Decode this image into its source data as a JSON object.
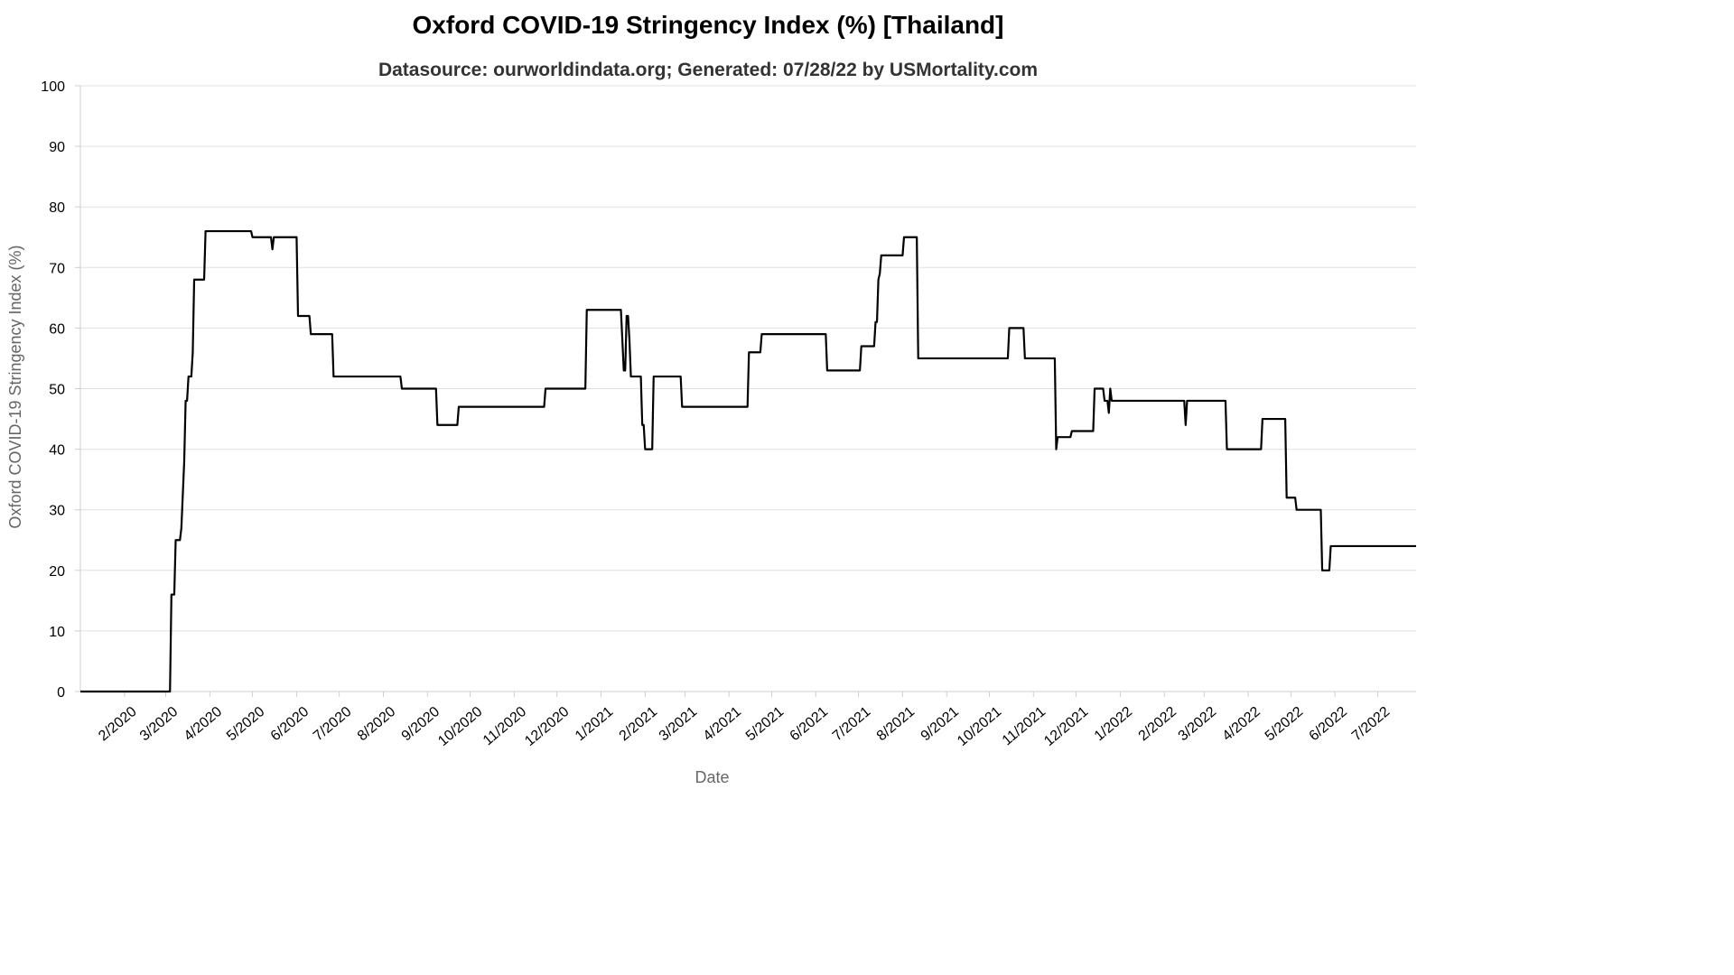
{
  "chart_data": {
    "type": "line",
    "title": "Oxford COVID-19 Stringency Index (%) [Thailand]",
    "subtitle": "Datasource: ourworldindata.org; Generated: 07/28/22 by USMortality.com",
    "xlabel": "Date",
    "ylabel": "Oxford COVID-19 Stringency Index (%)",
    "ylim": [
      0,
      100
    ],
    "yticks": [
      0,
      10,
      20,
      30,
      40,
      50,
      60,
      70,
      80,
      90,
      100
    ],
    "xlim": [
      "2020-01-01",
      "2022-07-28"
    ],
    "xtick_labels": [
      "2/2020",
      "3/2020",
      "4/2020",
      "5/2020",
      "6/2020",
      "7/2020",
      "8/2020",
      "9/2020",
      "10/2020",
      "11/2020",
      "12/2020",
      "1/2021",
      "2/2021",
      "3/2021",
      "4/2021",
      "5/2021",
      "6/2021",
      "7/2021",
      "8/2021",
      "9/2021",
      "10/2021",
      "11/2021",
      "12/2021",
      "1/2022",
      "2/2022",
      "3/2022",
      "4/2022",
      "5/2022",
      "6/2022",
      "7/2022"
    ],
    "grid": true,
    "line_color": "#000000",
    "series": [
      {
        "points": [
          [
            "2020-01-01",
            0
          ],
          [
            "2020-03-04",
            0
          ],
          [
            "2020-03-05",
            16
          ],
          [
            "2020-03-07",
            16
          ],
          [
            "2020-03-08",
            25
          ],
          [
            "2020-03-11",
            25
          ],
          [
            "2020-03-12",
            27
          ],
          [
            "2020-03-14",
            38
          ],
          [
            "2020-03-15",
            48
          ],
          [
            "2020-03-16",
            48
          ],
          [
            "2020-03-17",
            52
          ],
          [
            "2020-03-19",
            52
          ],
          [
            "2020-03-20",
            56
          ],
          [
            "2020-03-21",
            68
          ],
          [
            "2020-03-28",
            68
          ],
          [
            "2020-03-29",
            76
          ],
          [
            "2020-04-30",
            76
          ],
          [
            "2020-05-01",
            75
          ],
          [
            "2020-05-14",
            75
          ],
          [
            "2020-05-15",
            73
          ],
          [
            "2020-05-16",
            75
          ],
          [
            "2020-06-01",
            75
          ],
          [
            "2020-06-02",
            62
          ],
          [
            "2020-06-10",
            62
          ],
          [
            "2020-06-11",
            59
          ],
          [
            "2020-06-26",
            59
          ],
          [
            "2020-06-27",
            52
          ],
          [
            "2020-08-13",
            52
          ],
          [
            "2020-08-14",
            50
          ],
          [
            "2020-09-07",
            50
          ],
          [
            "2020-09-08",
            44
          ],
          [
            "2020-09-22",
            44
          ],
          [
            "2020-09-23",
            47
          ],
          [
            "2020-11-22",
            47
          ],
          [
            "2020-11-23",
            50
          ],
          [
            "2020-12-21",
            50
          ],
          [
            "2020-12-22",
            63
          ],
          [
            "2021-01-15",
            63
          ],
          [
            "2021-01-16",
            58
          ],
          [
            "2021-01-17",
            53
          ],
          [
            "2021-01-18",
            53
          ],
          [
            "2021-01-19",
            62
          ],
          [
            "2021-01-20",
            62
          ],
          [
            "2021-01-21",
            58
          ],
          [
            "2021-01-22",
            52
          ],
          [
            "2021-01-29",
            52
          ],
          [
            "2021-01-30",
            44
          ],
          [
            "2021-01-31",
            44
          ],
          [
            "2021-02-01",
            40
          ],
          [
            "2021-02-06",
            40
          ],
          [
            "2021-02-07",
            52
          ],
          [
            "2021-02-26",
            52
          ],
          [
            "2021-02-27",
            47
          ],
          [
            "2021-04-14",
            47
          ],
          [
            "2021-04-15",
            56
          ],
          [
            "2021-04-23",
            56
          ],
          [
            "2021-04-24",
            59
          ],
          [
            "2021-06-08",
            59
          ],
          [
            "2021-06-09",
            53
          ],
          [
            "2021-07-02",
            53
          ],
          [
            "2021-07-03",
            57
          ],
          [
            "2021-07-12",
            57
          ],
          [
            "2021-07-13",
            61
          ],
          [
            "2021-07-14",
            61
          ],
          [
            "2021-07-15",
            68
          ],
          [
            "2021-07-16",
            69
          ],
          [
            "2021-07-17",
            72
          ],
          [
            "2021-08-01",
            72
          ],
          [
            "2021-08-02",
            75
          ],
          [
            "2021-08-11",
            75
          ],
          [
            "2021-08-12",
            55
          ],
          [
            "2021-10-14",
            55
          ],
          [
            "2021-10-15",
            60
          ],
          [
            "2021-10-25",
            60
          ],
          [
            "2021-10-26",
            55
          ],
          [
            "2021-11-16",
            55
          ],
          [
            "2021-11-17",
            40
          ],
          [
            "2021-11-18",
            42
          ],
          [
            "2021-11-27",
            42
          ],
          [
            "2021-11-28",
            43
          ],
          [
            "2021-12-13",
            43
          ],
          [
            "2021-12-14",
            50
          ],
          [
            "2021-12-20",
            50
          ],
          [
            "2021-12-21",
            48
          ],
          [
            "2021-12-23",
            48
          ],
          [
            "2021-12-24",
            46
          ],
          [
            "2021-12-25",
            50
          ],
          [
            "2021-12-26",
            48
          ],
          [
            "2022-02-15",
            48
          ],
          [
            "2022-02-16",
            44
          ],
          [
            "2022-02-17",
            48
          ],
          [
            "2022-03-16",
            48
          ],
          [
            "2022-03-17",
            40
          ],
          [
            "2022-04-10",
            40
          ],
          [
            "2022-04-11",
            45
          ],
          [
            "2022-04-27",
            45
          ],
          [
            "2022-04-28",
            32
          ],
          [
            "2022-05-04",
            32
          ],
          [
            "2022-05-05",
            30
          ],
          [
            "2022-05-22",
            30
          ],
          [
            "2022-05-23",
            20
          ],
          [
            "2022-05-28",
            20
          ],
          [
            "2022-05-29",
            24
          ],
          [
            "2022-07-28",
            24
          ]
        ]
      }
    ]
  }
}
